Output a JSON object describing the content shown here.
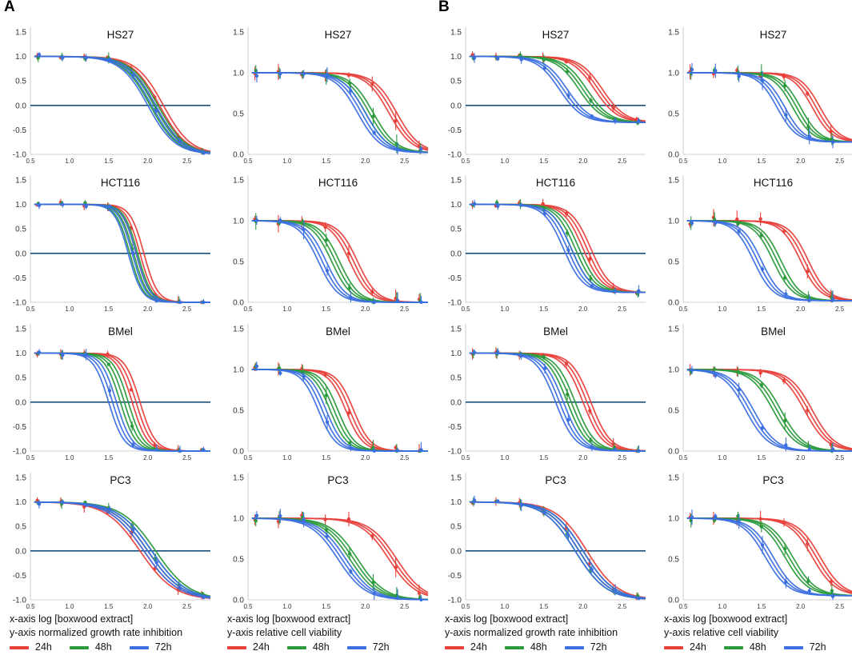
{
  "colors": {
    "24h": "#e8403b",
    "48h": "#2b9a3c",
    "72h": "#3b6fe0",
    "zero_line": "#1b4f7a"
  },
  "panel_labels": [
    "A",
    "B"
  ],
  "legend": {
    "A": {
      "gr": {
        "xlabel": "x-axis log [boxwood extract]",
        "ylabel": "y-axis normalized growth rate inhibition"
      },
      "rv": {
        "xlabel": "x-axis log [boxwood extract]",
        "ylabel": "y-axis relative cell viability"
      }
    },
    "B": {
      "gr": {
        "xlabel": "x-axis log [boxwood extract]",
        "ylabel": "y-axis normalized growth rate inhibition"
      },
      "rv": {
        "xlabel": "x-axis log [boxwood extract]",
        "ylabel": "y-axis relative cell viability"
      }
    },
    "entries": [
      "24h",
      "48h",
      "72h"
    ]
  },
  "chart_data": {
    "type": "line",
    "x_ticks": [
      "0.5",
      "1.0",
      "1.5",
      "2.0",
      "2.5"
    ],
    "xlim": [
      0.5,
      2.8
    ],
    "x_points": [
      0.6,
      0.9,
      1.2,
      1.5,
      1.8,
      2.1,
      2.4,
      2.7
    ],
    "gr_axis": {
      "ylim": [
        -1.0,
        1.5
      ],
      "ticks": [
        "1.5",
        "1.0",
        "0.5",
        "0.0",
        "-0.5",
        "-1.0"
      ]
    },
    "rv_axis": {
      "ylim": [
        0.0,
        1.5
      ],
      "ticks": [
        "1.5",
        "1.0",
        "0.5",
        "0.0"
      ]
    },
    "series_names": [
      "24h",
      "48h",
      "72h"
    ],
    "panels": [
      {
        "group": "A",
        "metric": "gr",
        "cell": "HS27",
        "title": "HS27",
        "bottom": -1.0,
        "top": 1.0,
        "ec50": {
          "24h": 2.15,
          "48h": 2.08,
          "72h": 2.05
        },
        "slope": 2.5
      },
      {
        "group": "A",
        "metric": "rv",
        "cell": "HS27",
        "title": "HS27",
        "bottom": 0.02,
        "top": 1.0,
        "ec50": {
          "24h": 2.35,
          "48h": 2.05,
          "72h": 1.95
        },
        "slope": 3.0
      },
      {
        "group": "B",
        "metric": "gr",
        "cell": "HS27",
        "title": "HS27",
        "bottom": -0.35,
        "top": 1.0,
        "ec50": {
          "24h": 2.2,
          "48h": 2.0,
          "72h": 1.75
        },
        "slope": 3.0
      },
      {
        "group": "B",
        "metric": "rv",
        "cell": "HS27",
        "title": "HS27",
        "bottom": 0.15,
        "top": 1.0,
        "ec50": {
          "24h": 2.2,
          "48h": 1.95,
          "72h": 1.75
        },
        "slope": 3.5
      },
      {
        "group": "A",
        "metric": "gr",
        "cell": "HCT116",
        "title": "HCT116",
        "bottom": -1.0,
        "top": 1.0,
        "ec50": {
          "24h": 1.9,
          "48h": 1.82,
          "72h": 1.8
        },
        "slope": 5.0
      },
      {
        "group": "A",
        "metric": "rv",
        "cell": "HCT116",
        "title": "HCT116",
        "bottom": 0.0,
        "top": 1.0,
        "ec50": {
          "24h": 1.85,
          "48h": 1.62,
          "72h": 1.45
        },
        "slope": 3.5
      },
      {
        "group": "B",
        "metric": "gr",
        "cell": "HCT116",
        "title": "HCT116",
        "bottom": -0.8,
        "top": 1.0,
        "ec50": {
          "24h": 2.05,
          "48h": 1.9,
          "72h": 1.8
        },
        "slope": 3.5
      },
      {
        "group": "B",
        "metric": "rv",
        "cell": "HCT116",
        "title": "HCT116",
        "bottom": 0.02,
        "top": 1.0,
        "ec50": {
          "24h": 2.05,
          "48h": 1.7,
          "72h": 1.45
        },
        "slope": 3.5
      },
      {
        "group": "A",
        "metric": "gr",
        "cell": "BMel",
        "title": "BMel",
        "bottom": -1.0,
        "top": 1.0,
        "ec50": {
          "24h": 1.85,
          "48h": 1.7,
          "72h": 1.55
        },
        "slope": 4.5
      },
      {
        "group": "A",
        "metric": "rv",
        "cell": "BMel",
        "title": "BMel",
        "bottom": 0.0,
        "top": 1.0,
        "ec50": {
          "24h": 1.8,
          "48h": 1.6,
          "72h": 1.45
        },
        "slope": 4.0
      },
      {
        "group": "B",
        "metric": "gr",
        "cell": "BMel",
        "title": "BMel",
        "bottom": -1.0,
        "top": 1.0,
        "ec50": {
          "24h": 2.05,
          "48h": 1.85,
          "72h": 1.7
        },
        "slope": 3.5
      },
      {
        "group": "B",
        "metric": "rv",
        "cell": "BMel",
        "title": "BMel",
        "bottom": 0.0,
        "top": 1.0,
        "ec50": {
          "24h": 2.1,
          "48h": 1.7,
          "72h": 1.35
        },
        "slope": 3.0
      },
      {
        "group": "A",
        "metric": "gr",
        "cell": "PC3",
        "title": "PC3",
        "bottom": -1.0,
        "top": 1.0,
        "ec50": {
          "24h": 1.95,
          "48h": 2.05,
          "72h": 2.0
        },
        "slope": 2.0
      },
      {
        "group": "A",
        "metric": "rv",
        "cell": "PC3",
        "title": "PC3",
        "bottom": 0.0,
        "top": 1.0,
        "ec50": {
          "24h": 2.35,
          "48h": 1.85,
          "72h": 1.7
        },
        "slope": 2.5
      },
      {
        "group": "B",
        "metric": "gr",
        "cell": "PC3",
        "title": "PC3",
        "bottom": -1.0,
        "top": 1.0,
        "ec50": {
          "24h": 2.0,
          "48h": 1.95,
          "72h": 1.95
        },
        "slope": 2.2
      },
      {
        "group": "B",
        "metric": "rv",
        "cell": "PC3",
        "title": "PC3",
        "bottom": 0.05,
        "top": 1.0,
        "ec50": {
          "24h": 2.2,
          "48h": 1.85,
          "72h": 1.6
        },
        "slope": 3.0
      }
    ]
  }
}
